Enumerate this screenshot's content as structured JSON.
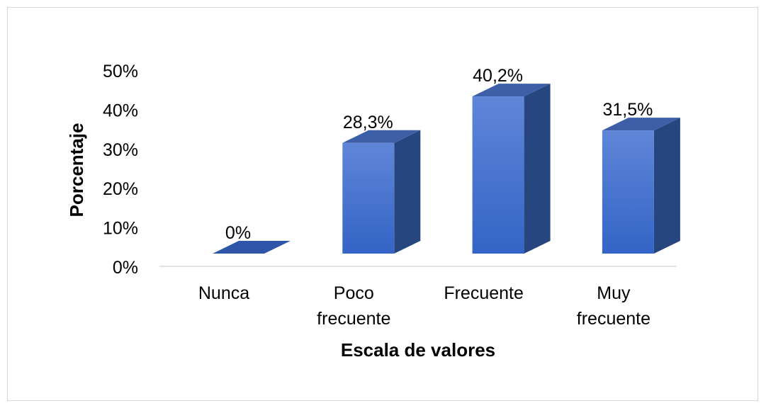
{
  "chart_data": {
    "type": "bar3d",
    "x_label": "Escala de valores",
    "y_label": "Porcentaje",
    "categories": [
      "Nunca",
      "Poco frecuente",
      "Frecuente",
      "Muy frecuente"
    ],
    "values": [
      0,
      28.3,
      40.2,
      31.5
    ],
    "value_labels": [
      "0%",
      "28,3%",
      "40,2%",
      "31,5%"
    ],
    "color": "#4472c4",
    "ylim": [
      0,
      50
    ],
    "yticks": [
      {
        "value": 0,
        "label": "0%"
      },
      {
        "value": 10,
        "label": "10%"
      },
      {
        "value": 20,
        "label": "20%"
      },
      {
        "value": 30,
        "label": "30%"
      },
      {
        "value": 40,
        "label": "40%"
      },
      {
        "value": 50,
        "label": "50%"
      }
    ],
    "grid": false
  }
}
